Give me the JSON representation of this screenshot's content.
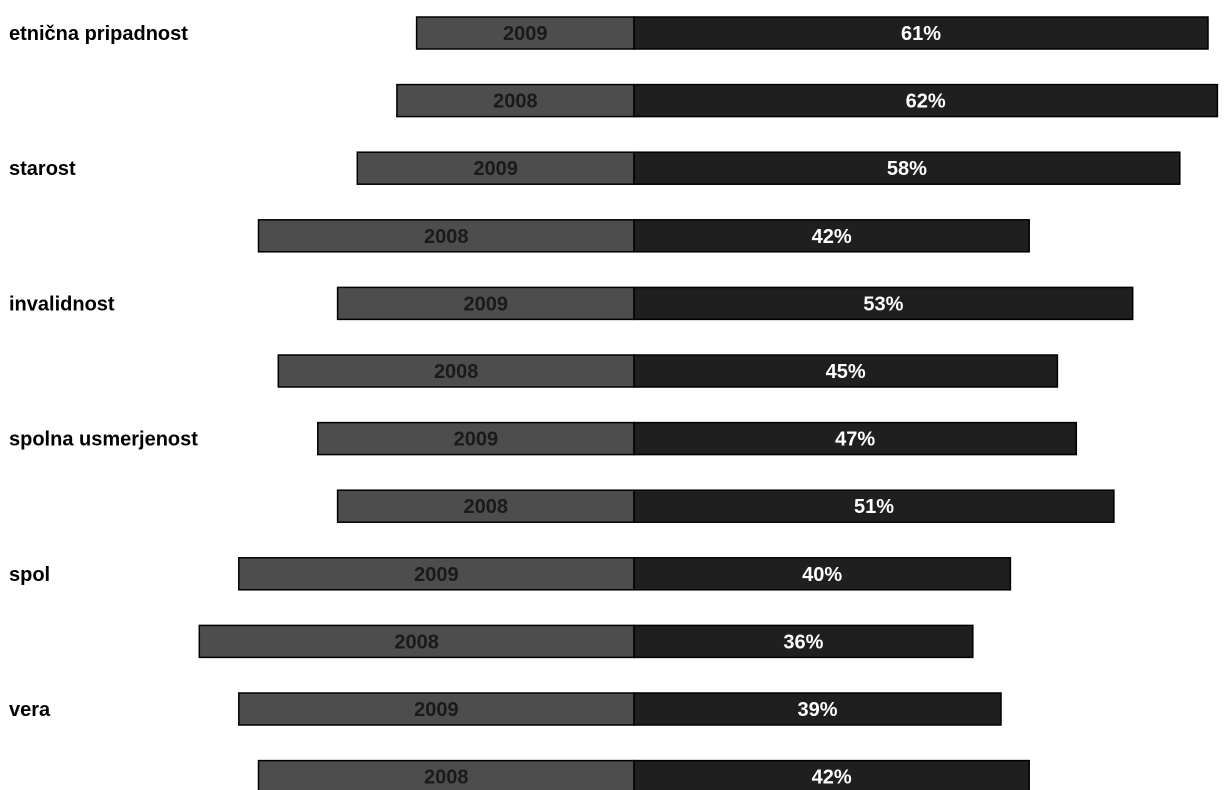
{
  "chart_data": {
    "type": "bar",
    "orientation": "horizontal",
    "categories": [
      "etnična pripadnost",
      "starost",
      "invalidnost",
      "spolna usmerjenost",
      "spol",
      "vera"
    ],
    "rows": [
      {
        "category": "etnična pripadnost",
        "year": "2009",
        "left_value": 11,
        "value": 61,
        "label": "61%"
      },
      {
        "category": "etnična pripadnost",
        "year": "2008",
        "left_value": 12,
        "value": 62,
        "label": "62%"
      },
      {
        "category": "starost",
        "year": "2009",
        "left_value": 14,
        "value": 58,
        "label": "58%"
      },
      {
        "category": "starost",
        "year": "2008",
        "left_value": 19,
        "value": 42,
        "label": "42%"
      },
      {
        "category": "invalidnost",
        "year": "2009",
        "left_value": 15,
        "value": 53,
        "label": "53%"
      },
      {
        "category": "invalidnost",
        "year": "2008",
        "left_value": 18,
        "value": 45,
        "label": "45%"
      },
      {
        "category": "spolna usmerjenost",
        "year": "2009",
        "left_value": 16,
        "value": 47,
        "label": "47%"
      },
      {
        "category": "spolna usmerjenost",
        "year": "2008",
        "left_value": 15,
        "value": 51,
        "label": "51%"
      },
      {
        "category": "spol",
        "year": "2009",
        "left_value": 20,
        "value": 40,
        "label": "40%"
      },
      {
        "category": "spol",
        "year": "2008",
        "left_value": 22,
        "value": 36,
        "label": "36%"
      },
      {
        "category": "vera",
        "year": "2009",
        "left_value": 20,
        "value": 39,
        "label": "39%"
      },
      {
        "category": "vera",
        "year": "2008",
        "left_value": 19,
        "value": 42,
        "label": "42%"
      }
    ],
    "colors": {
      "left_bar": "#4d4d4d",
      "right_bar": "#1f1f1f",
      "left_text": "#1a1a1a",
      "right_text": "#ffffff",
      "border": "#000000"
    },
    "title": "",
    "xlabel": "",
    "ylabel": "",
    "grid": false,
    "legend": "none"
  }
}
